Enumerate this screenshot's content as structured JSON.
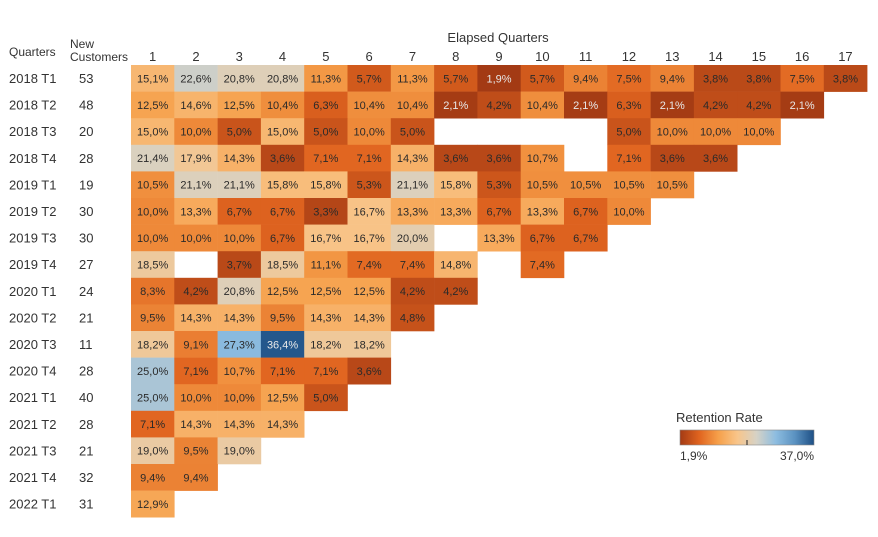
{
  "chart_data": {
    "type": "heatmap",
    "title": "",
    "col_header_title": "Elapsed Quarters",
    "row_header_title": "Quarters",
    "customers_header": [
      "New",
      "Customers"
    ],
    "columns": [
      "1",
      "2",
      "3",
      "4",
      "5",
      "6",
      "7",
      "8",
      "9",
      "10",
      "11",
      "12",
      "13",
      "14",
      "15",
      "16",
      "17"
    ],
    "rows": [
      {
        "label": "2018 T1",
        "customers": "53",
        "cells": [
          "15,1%",
          "22,6%",
          "20,8%",
          "20,8%",
          "11,3%",
          "5,7%",
          "11,3%",
          "5,7%",
          "1,9%",
          "5,7%",
          "9,4%",
          "7,5%",
          "9,4%",
          "3,8%",
          "3,8%",
          "7,5%",
          "3,8%"
        ]
      },
      {
        "label": "2018 T2",
        "customers": "48",
        "cells": [
          "12,5%",
          "14,6%",
          "12,5%",
          "10,4%",
          "6,3%",
          "10,4%",
          "10,4%",
          "2,1%",
          "4,2%",
          "10,4%",
          "2,1%",
          "6,3%",
          "2,1%",
          "4,2%",
          "4,2%",
          "2,1%"
        ]
      },
      {
        "label": "2018 T3",
        "customers": "20",
        "cells": [
          "15,0%",
          "10,0%",
          "5,0%",
          "15,0%",
          "5,0%",
          "10,0%",
          "5,0%",
          null,
          null,
          null,
          null,
          "5,0%",
          "10,0%",
          "10,0%",
          "10,0%"
        ]
      },
      {
        "label": "2018 T4",
        "customers": "28",
        "cells": [
          "21,4%",
          "17,9%",
          "14,3%",
          "3,6%",
          "7,1%",
          "7,1%",
          "14,3%",
          "3,6%",
          "3,6%",
          "10,7%",
          null,
          "7,1%",
          "3,6%",
          "3,6%"
        ]
      },
      {
        "label": "2019 T1",
        "customers": "19",
        "cells": [
          "10,5%",
          "21,1%",
          "21,1%",
          "15,8%",
          "15,8%",
          "5,3%",
          "21,1%",
          "15,8%",
          "5,3%",
          "10,5%",
          "10,5%",
          "10,5%",
          "10,5%"
        ]
      },
      {
        "label": "2019 T2",
        "customers": "30",
        "cells": [
          "10,0%",
          "13,3%",
          "6,7%",
          "6,7%",
          "3,3%",
          "16,7%",
          "13,3%",
          "13,3%",
          "6,7%",
          "13,3%",
          "6,7%",
          "10,0%"
        ]
      },
      {
        "label": "2019 T3",
        "customers": "30",
        "cells": [
          "10,0%",
          "10,0%",
          "10,0%",
          "6,7%",
          "16,7%",
          "16,7%",
          "20,0%",
          null,
          "13,3%",
          "6,7%",
          "6,7%"
        ]
      },
      {
        "label": "2019 T4",
        "customers": "27",
        "cells": [
          "18,5%",
          null,
          "3,7%",
          "18,5%",
          "11,1%",
          "7,4%",
          "7,4%",
          "14,8%",
          null,
          "7,4%"
        ]
      },
      {
        "label": "2020 T1",
        "customers": "24",
        "cells": [
          "8,3%",
          "4,2%",
          "20,8%",
          "12,5%",
          "12,5%",
          "12,5%",
          "4,2%",
          "4,2%"
        ]
      },
      {
        "label": "2020 T2",
        "customers": "21",
        "cells": [
          "9,5%",
          "14,3%",
          "14,3%",
          "9,5%",
          "14,3%",
          "14,3%",
          "4,8%"
        ]
      },
      {
        "label": "2020 T3",
        "customers": "11",
        "cells": [
          "18,2%",
          "9,1%",
          "27,3%",
          "36,4%",
          "18,2%",
          "18,2%"
        ]
      },
      {
        "label": "2020 T4",
        "customers": "28",
        "cells": [
          "25,0%",
          "7,1%",
          "10,7%",
          "7,1%",
          "7,1%",
          "3,6%"
        ]
      },
      {
        "label": "2021 T1",
        "customers": "40",
        "cells": [
          "25,0%",
          "10,0%",
          "10,0%",
          "12,5%",
          "5,0%"
        ]
      },
      {
        "label": "2021 T2",
        "customers": "28",
        "cells": [
          "7,1%",
          "14,3%",
          "14,3%",
          "14,3%"
        ]
      },
      {
        "label": "2021 T3",
        "customers": "21",
        "cells": [
          "19,0%",
          "9,5%",
          "19,0%"
        ]
      },
      {
        "label": "2021 T4",
        "customers": "32",
        "cells": [
          "9,4%",
          "9,4%"
        ]
      },
      {
        "label": "2022 T1",
        "customers": "31",
        "cells": [
          "12,9%"
        ]
      }
    ],
    "legend": {
      "title": "Retention Rate",
      "min_label": "1,9%",
      "max_label": "37,0%",
      "min": 1.9,
      "max": 37.0,
      "colors": [
        "#a33a14",
        "#e0641f",
        "#f6a04a",
        "#f8c58a",
        "#d6d2c6",
        "#8dbde0",
        "#5b92c1",
        "#1d4f85"
      ]
    }
  }
}
